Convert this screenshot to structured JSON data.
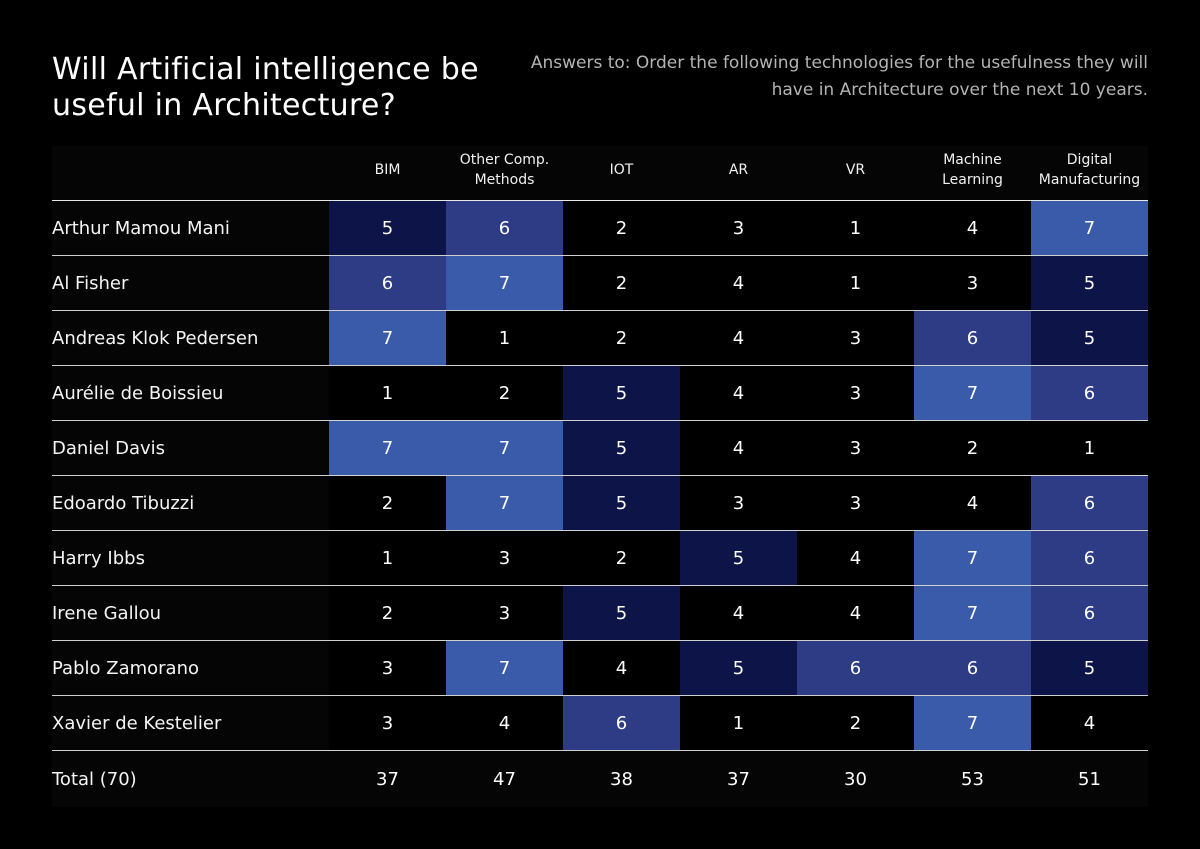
{
  "title": "Will Artificial intelligence be useful in Architecture?",
  "subtitle": "Answers to: Order the following technologies for the usefulness they will have in Architecture over the next 10 years.",
  "colors": {
    "background": "#000000",
    "rank_1": "#000000",
    "rank_2": "#000000",
    "rank_3": "#000000",
    "rank_4": "#000000",
    "rank_5": "#0c1448",
    "rank_6": "#2e3c86",
    "rank_7": "#3a5aaa",
    "rule": "#d0d0d0"
  },
  "chart_data": {
    "type": "table",
    "title": "Will Artificial intelligence be useful in Architecture?",
    "subtitle": "Answers to: Order the following technologies for the usefulness they will have in Architecture over the next 10 years.",
    "columns": [
      "BIM",
      "Other Comp.\nMethods",
      "IOT",
      "AR",
      "VR",
      "Machine\nLearning",
      "Digital\nManufacturing"
    ],
    "rows": [
      {
        "name": "Arthur Mamou Mani",
        "values": [
          5,
          6,
          2,
          3,
          1,
          4,
          7
        ]
      },
      {
        "name": "Al Fisher",
        "values": [
          6,
          7,
          2,
          4,
          1,
          3,
          5
        ]
      },
      {
        "name": "Andreas Klok Pedersen",
        "values": [
          7,
          1,
          2,
          4,
          3,
          6,
          5
        ]
      },
      {
        "name": "Aurélie de Boissieu",
        "values": [
          1,
          2,
          5,
          4,
          3,
          7,
          6
        ]
      },
      {
        "name": "Daniel Davis",
        "values": [
          7,
          7,
          5,
          4,
          3,
          2,
          1
        ]
      },
      {
        "name": "Edoardo Tibuzzi",
        "values": [
          2,
          7,
          5,
          3,
          3,
          4,
          6
        ]
      },
      {
        "name": "Harry Ibbs",
        "values": [
          1,
          3,
          2,
          5,
          4,
          7,
          6
        ]
      },
      {
        "name": "Irene Gallou",
        "values": [
          2,
          3,
          5,
          4,
          4,
          7,
          6
        ]
      },
      {
        "name": "Pablo Zamorano",
        "values": [
          3,
          7,
          4,
          5,
          6,
          6,
          5
        ]
      },
      {
        "name": "Xavier de Kestelier",
        "values": [
          3,
          4,
          6,
          1,
          2,
          7,
          4
        ]
      }
    ],
    "total": {
      "label": "Total (70)",
      "values": [
        37,
        47,
        38,
        37,
        30,
        53,
        51
      ]
    }
  }
}
